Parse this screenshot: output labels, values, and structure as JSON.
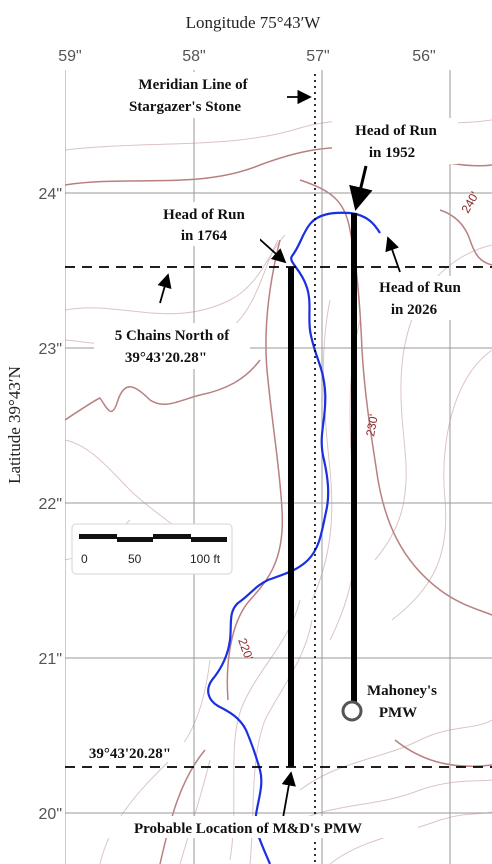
{
  "axes": {
    "top_title": "Longitude 75°43′W",
    "left_title": "Latitude 39°43′N",
    "longitude_ticks": [
      "59\"",
      "58\"",
      "57\"",
      "56\""
    ],
    "latitude_ticks": [
      "24\"",
      "23\"",
      "22\"",
      "21\"",
      "20\""
    ]
  },
  "annotations": {
    "meridian_line_1": "Meridian Line of",
    "meridian_line_2": "Stargazer's Stone",
    "head_1952_1": "Head of Run",
    "head_1952_2": "in 1952",
    "head_1764_1": "Head of Run",
    "head_1764_2": "in 1764",
    "head_2026_1": "Head of Run",
    "head_2026_2": "in 2026",
    "chains_north_1": "5 Chains North of",
    "chains_north_2": "39°43'20.28\"",
    "baseline_label": "39°43'20.28\"",
    "mahoney_1": "Mahoney's",
    "mahoney_2": "PMW",
    "md_pmw": "Probable Location of M&D's PMW"
  },
  "contour_labels": [
    "240'",
    "230'",
    "220'"
  ],
  "scale_bar": {
    "labels": [
      "0",
      "50",
      "100 ft"
    ]
  },
  "colors": {
    "background": "#ffffff",
    "grid": "#9a9a9a",
    "contour_major": "#b98080",
    "contour_minor": "#dcc4c4",
    "stream": "#1a2fe0",
    "lines": "#000000"
  }
}
